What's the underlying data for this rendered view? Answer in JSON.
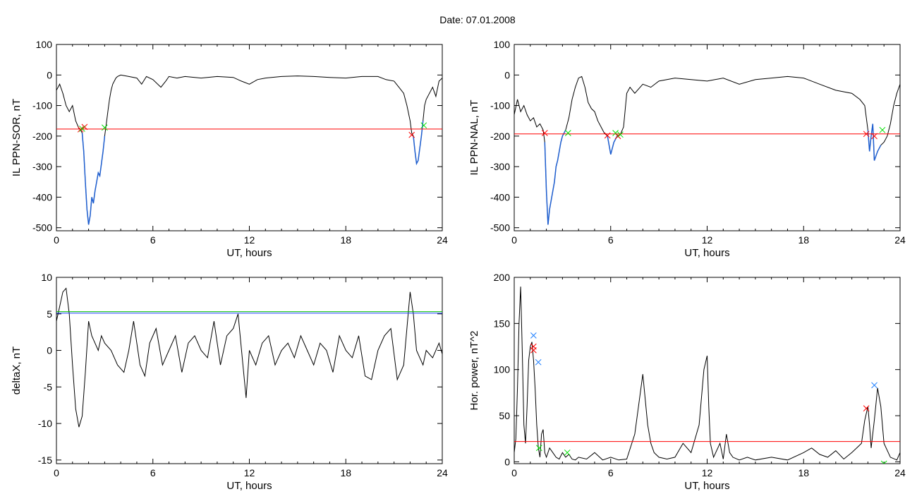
{
  "figure": {
    "title": "Date:  07.01.2008"
  },
  "colors": {
    "trace": "#000000",
    "threshold": "#ff0000",
    "selected": "#1f5fd0",
    "cross_start": "#ff0000",
    "cross_end": "#00e000",
    "cross_peak": "#2080ff",
    "line_green": "#00c000",
    "line_blue": "#2040ff"
  },
  "chart_data": [
    {
      "type": "line",
      "id": "sor",
      "title": "",
      "xlabel": "UT, hours",
      "ylabel": "IL PPN-SOR, nT",
      "xlim": [
        0,
        24
      ],
      "ylim": [
        -510,
        100
      ],
      "xticks": [
        0,
        6,
        12,
        18,
        24
      ],
      "yticks": [
        100,
        0,
        -100,
        -200,
        -300,
        -400,
        -500
      ],
      "series": [
        {
          "x": [
            0,
            0.2,
            0.4,
            0.6,
            0.8,
            1.0,
            1.2,
            1.4,
            1.5,
            1.6,
            1.7,
            1.8,
            1.9,
            2.0,
            2.1,
            2.2,
            2.3,
            2.4,
            2.5,
            2.6,
            2.7,
            2.8,
            2.9,
            3.0,
            3.1,
            3.2,
            3.3,
            3.4,
            3.5,
            3.6,
            3.7,
            3.8,
            4.0,
            4.5,
            5.0,
            5.3,
            5.6,
            6.0,
            6.5,
            6.8,
            7.0,
            7.5,
            8,
            9,
            10,
            11,
            11.5,
            12,
            12.5,
            13,
            14,
            15,
            16,
            17,
            18,
            19,
            20,
            20.5,
            21,
            21.3,
            21.6,
            21.8,
            22.0,
            22.1,
            22.2,
            22.3,
            22.4,
            22.5,
            22.6,
            22.7,
            22.8,
            22.9,
            23.0,
            23.2,
            23.4,
            23.6,
            23.8,
            24.0
          ],
          "y": [
            -50,
            -30,
            -60,
            -100,
            -120,
            -100,
            -150,
            -175,
            -180,
            -190,
            -250,
            -350,
            -440,
            -490,
            -460,
            -400,
            -420,
            -380,
            -350,
            -320,
            -330,
            -290,
            -250,
            -200,
            -160,
            -120,
            -80,
            -50,
            -30,
            -20,
            -10,
            -5,
            0,
            -5,
            -10,
            -30,
            -5,
            -15,
            -40,
            -20,
            -5,
            -10,
            -5,
            -10,
            -5,
            -8,
            -20,
            -30,
            -15,
            -10,
            -5,
            -3,
            -5,
            -8,
            -10,
            -5,
            -5,
            -15,
            -20,
            -40,
            -60,
            -100,
            -150,
            -190,
            -200,
            -250,
            -290,
            -280,
            -240,
            -200,
            -150,
            -100,
            -80,
            -60,
            -40,
            -70,
            -20,
            -10
          ]
        }
      ],
      "thresholds": [
        {
          "y": -177,
          "color": "#ff0000"
        }
      ],
      "highlights": [
        {
          "from": 1.55,
          "to": 3.05
        },
        {
          "from": 22.2,
          "to": 22.85
        }
      ],
      "markers": [
        {
          "x": 1.5,
          "y": -178,
          "color": "#ff0000"
        },
        {
          "x": 1.75,
          "y": -170,
          "color": "#ff0000"
        },
        {
          "x": 1.6,
          "y": -176,
          "color": "#00e000"
        },
        {
          "x": 3.0,
          "y": -172,
          "color": "#00e000"
        },
        {
          "x": 22.1,
          "y": -196,
          "color": "#ff0000"
        },
        {
          "x": 22.85,
          "y": -165,
          "color": "#00e000"
        }
      ],
      "grid": false
    },
    {
      "type": "line",
      "id": "nal",
      "title": "",
      "xlabel": "UT, hours",
      "ylabel": "IL PPN-NAL, nT",
      "xlim": [
        0,
        24
      ],
      "ylim": [
        -510,
        100
      ],
      "xticks": [
        0,
        6,
        12,
        18,
        24
      ],
      "yticks": [
        100,
        0,
        -100,
        -200,
        -300,
        -400,
        -500
      ],
      "series": [
        {
          "x": [
            0,
            0.2,
            0.4,
            0.6,
            0.8,
            1.0,
            1.2,
            1.4,
            1.6,
            1.8,
            1.9,
            2.0,
            2.1,
            2.2,
            2.3,
            2.4,
            2.5,
            2.6,
            2.7,
            2.8,
            2.9,
            3.0,
            3.2,
            3.4,
            3.6,
            3.8,
            4.0,
            4.2,
            4.4,
            4.6,
            4.8,
            5.0,
            5.2,
            5.4,
            5.6,
            5.8,
            6.0,
            6.2,
            6.4,
            6.6,
            6.8,
            7.0,
            7.2,
            7.5,
            8.0,
            8.5,
            9,
            10,
            11,
            12,
            13,
            14,
            15,
            16,
            17,
            18,
            19,
            20,
            21,
            21.5,
            21.8,
            22.0,
            22.1,
            22.2,
            22.3,
            22.4,
            22.6,
            22.8,
            23.0,
            23.2,
            23.4,
            23.6,
            23.8,
            24.0
          ],
          "y": [
            -130,
            -80,
            -120,
            -100,
            -130,
            -150,
            -140,
            -170,
            -160,
            -180,
            -220,
            -380,
            -490,
            -440,
            -410,
            -380,
            -350,
            -300,
            -280,
            -250,
            -220,
            -200,
            -180,
            -140,
            -80,
            -40,
            -10,
            -5,
            -40,
            -90,
            -110,
            -120,
            -150,
            -170,
            -190,
            -200,
            -260,
            -220,
            -200,
            -195,
            -170,
            -60,
            -40,
            -60,
            -30,
            -40,
            -20,
            -10,
            -15,
            -20,
            -10,
            -30,
            -15,
            -10,
            -5,
            -10,
            -30,
            -50,
            -60,
            -80,
            -100,
            -180,
            -250,
            -200,
            -160,
            -280,
            -250,
            -230,
            -220,
            -200,
            -160,
            -100,
            -60,
            -30
          ]
        }
      ],
      "thresholds": [
        {
          "y": -193,
          "color": "#ff0000"
        }
      ],
      "highlights": [
        {
          "from": 1.9,
          "to": 3.3
        },
        {
          "from": 5.8,
          "to": 6.65
        },
        {
          "from": 21.9,
          "to": 22.9
        }
      ],
      "markers": [
        {
          "x": 1.9,
          "y": -190,
          "color": "#ff0000"
        },
        {
          "x": 3.35,
          "y": -190,
          "color": "#00e000"
        },
        {
          "x": 5.8,
          "y": -198,
          "color": "#ff0000"
        },
        {
          "x": 6.3,
          "y": -190,
          "color": "#00e000"
        },
        {
          "x": 6.45,
          "y": -200,
          "color": "#ff0000"
        },
        {
          "x": 6.6,
          "y": -195,
          "color": "#00e000"
        },
        {
          "x": 21.9,
          "y": -193,
          "color": "#ff0000"
        },
        {
          "x": 22.4,
          "y": -200,
          "color": "#ff0000"
        },
        {
          "x": 22.9,
          "y": -180,
          "color": "#00e000"
        }
      ],
      "grid": false
    },
    {
      "type": "line",
      "id": "deltax",
      "title": "",
      "xlabel": "UT, hours",
      "ylabel": "deltaX, nT",
      "xlim": [
        0,
        24
      ],
      "ylim": [
        -15.5,
        10
      ],
      "xticks": [
        0,
        6,
        12,
        18,
        24
      ],
      "yticks": [
        10,
        5,
        0,
        -5,
        -10,
        -15
      ],
      "series": [
        {
          "x": [
            0,
            0.2,
            0.4,
            0.6,
            0.8,
            1.0,
            1.2,
            1.4,
            1.6,
            1.8,
            2.0,
            2.2,
            2.4,
            2.6,
            2.8,
            3.0,
            3.4,
            3.8,
            4.2,
            4.5,
            4.8,
            5.2,
            5.5,
            5.8,
            6.2,
            6.6,
            7.0,
            7.4,
            7.8,
            8.2,
            8.6,
            9.0,
            9.4,
            9.8,
            10.2,
            10.6,
            11.0,
            11.3,
            11.6,
            11.8,
            12.0,
            12.4,
            12.8,
            13.2,
            13.6,
            14.0,
            14.4,
            14.8,
            15.2,
            15.6,
            16.0,
            16.4,
            16.8,
            17.2,
            17.6,
            18.0,
            18.4,
            18.8,
            19.2,
            19.6,
            20.0,
            20.4,
            20.8,
            21.2,
            21.6,
            22.0,
            22.2,
            22.4,
            22.6,
            22.8,
            23.0,
            23.4,
            23.8,
            24.0
          ],
          "y": [
            4,
            6,
            8,
            8.5,
            5,
            -2,
            -8,
            -10.5,
            -9,
            -3,
            4,
            2,
            1,
            0,
            2,
            1,
            0,
            -2,
            -3,
            0,
            4,
            -2,
            -3.5,
            1,
            3,
            -2,
            0,
            2,
            -3,
            1,
            2,
            0,
            -1,
            4,
            -2,
            2,
            3,
            5,
            -2,
            -6.5,
            0,
            -2,
            1,
            2,
            -2,
            0,
            1,
            -1,
            2,
            0,
            -2,
            1,
            0,
            -3,
            2,
            0,
            -1,
            2,
            -3.5,
            -4,
            0,
            2,
            3,
            -4,
            -2,
            8,
            5,
            0,
            -1,
            -2,
            0,
            -1,
            1,
            -0.5
          ]
        }
      ],
      "thresholds": [
        {
          "y": 5.3,
          "color": "#00c000"
        },
        {
          "y": 5.1,
          "color": "#2040ff"
        }
      ],
      "highlights": [],
      "markers": [],
      "grid": false
    },
    {
      "type": "line",
      "id": "power",
      "title": "",
      "xlabel": "UT, hours",
      "ylabel": "Hor. power, nT^2",
      "xlim": [
        0,
        24
      ],
      "ylim": [
        -2,
        200
      ],
      "xticks": [
        0,
        6,
        12,
        18,
        24
      ],
      "yticks": [
        200,
        150,
        100,
        50,
        0
      ],
      "series": [
        {
          "x": [
            0,
            0.1,
            0.2,
            0.3,
            0.4,
            0.5,
            0.6,
            0.7,
            0.8,
            0.9,
            1.0,
            1.1,
            1.2,
            1.3,
            1.4,
            1.5,
            1.6,
            1.7,
            1.8,
            1.9,
            2.0,
            2.2,
            2.4,
            2.6,
            2.8,
            3.0,
            3.2,
            3.4,
            3.6,
            3.8,
            4.0,
            4.5,
            5.0,
            5.5,
            6.0,
            6.5,
            7.0,
            7.5,
            8.0,
            8.3,
            8.5,
            8.7,
            9.0,
            9.5,
            10.0,
            10.5,
            11.0,
            11.5,
            11.8,
            12.0,
            12.1,
            12.2,
            12.4,
            12.8,
            13.0,
            13.2,
            13.4,
            13.6,
            14.0,
            14.5,
            15,
            16,
            17,
            18,
            18.5,
            19,
            19.5,
            20,
            20.5,
            21.0,
            21.3,
            21.6,
            21.8,
            22.0,
            22.1,
            22.2,
            22.4,
            22.6,
            22.8,
            23.0,
            23.4,
            23.8,
            24.0
          ],
          "y": [
            10,
            25,
            80,
            150,
            190,
            120,
            40,
            20,
            60,
            110,
            125,
            130,
            110,
            80,
            40,
            15,
            5,
            30,
            35,
            10,
            5,
            15,
            10,
            5,
            3,
            10,
            5,
            8,
            3,
            2,
            5,
            3,
            10,
            2,
            5,
            2,
            3,
            30,
            95,
            40,
            20,
            10,
            5,
            3,
            5,
            20,
            10,
            40,
            100,
            115,
            60,
            20,
            5,
            20,
            3,
            30,
            10,
            5,
            2,
            5,
            2,
            5,
            2,
            10,
            15,
            8,
            5,
            12,
            3,
            10,
            15,
            20,
            45,
            60,
            40,
            15,
            45,
            80,
            60,
            20,
            5,
            2,
            10
          ]
        }
      ],
      "thresholds": [
        {
          "y": 22,
          "color": "#ff0000"
        }
      ],
      "highlights": [],
      "markers": [
        {
          "x": 1.2,
          "y": 137,
          "color": "#2080ff"
        },
        {
          "x": 1.2,
          "y": 125,
          "color": "#ff0000"
        },
        {
          "x": 1.2,
          "y": 121,
          "color": "#ff0000"
        },
        {
          "x": 1.5,
          "y": 108,
          "color": "#2080ff"
        },
        {
          "x": 1.55,
          "y": 15,
          "color": "#00e000"
        },
        {
          "x": 3.3,
          "y": 10,
          "color": "#00e000"
        },
        {
          "x": 21.9,
          "y": 58,
          "color": "#ff0000"
        },
        {
          "x": 22.4,
          "y": 83,
          "color": "#2080ff"
        },
        {
          "x": 23.0,
          "y": -2,
          "color": "#00e000"
        }
      ],
      "grid": false
    }
  ]
}
